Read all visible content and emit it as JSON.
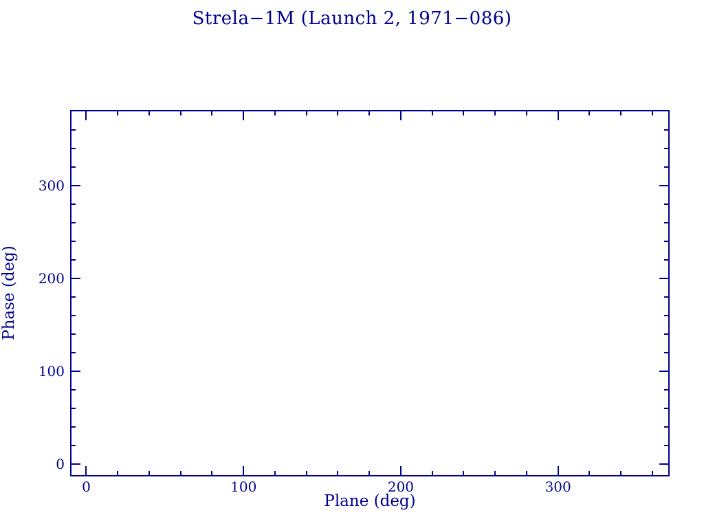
{
  "colors": {
    "ink": "#000090",
    "background": "#ffffff"
  },
  "chart_data": {
    "type": "scatter",
    "title": "Strela−1M (Launch 2, 1971−086)",
    "xlabel": "Plane (deg)",
    "ylabel": "Phase (deg)",
    "xlim": [
      -9.4,
      370.1
    ],
    "ylim": [
      -11.9,
      380.0
    ],
    "xticks": [
      0,
      100,
      200,
      300
    ],
    "yticks": [
      0,
      100,
      200,
      300
    ],
    "minor_tick_step": 20,
    "grid": false,
    "legend": null,
    "series": []
  }
}
